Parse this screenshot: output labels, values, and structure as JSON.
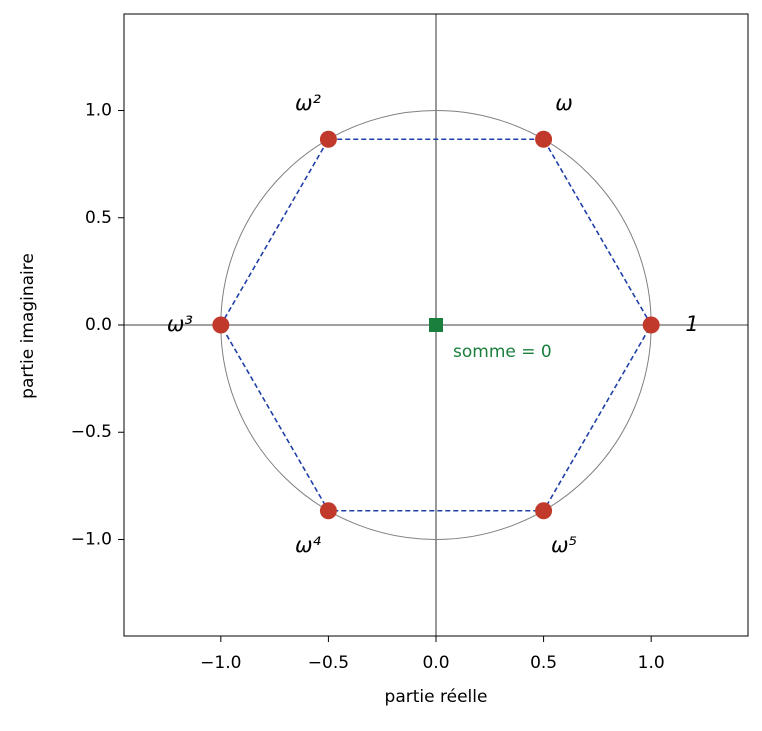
{
  "chart_data": {
    "type": "scatter",
    "xlabel": "partie réelle",
    "ylabel": "partie imaginaire",
    "xlim": [
      -1.45,
      1.45
    ],
    "ylim": [
      -1.45,
      1.45
    ],
    "xticks": [
      {
        "value": -1.0,
        "label": "−1.0"
      },
      {
        "value": -0.5,
        "label": "−0.5"
      },
      {
        "value": 0,
        "label": "0.0"
      },
      {
        "value": 0.5,
        "label": "0.5"
      },
      {
        "value": 1.0,
        "label": "1.0"
      }
    ],
    "yticks": [
      {
        "value": -1.0,
        "label": "−1.0"
      },
      {
        "value": -0.5,
        "label": "−0.5"
      },
      {
        "value": 0,
        "label": "0.0"
      },
      {
        "value": 0.5,
        "label": "0.5"
      },
      {
        "value": 1.0,
        "label": "1.0"
      }
    ],
    "x": [
      1,
      0.5,
      -0.5,
      -1,
      -0.5,
      0.5
    ],
    "y": [
      0,
      0.866,
      0.866,
      0,
      -0.866,
      -0.866
    ],
    "point_labels": [
      "1",
      "ω",
      "ω²",
      "ω³",
      "ω⁴",
      "ω⁵"
    ],
    "color": "#c0392b",
    "polygon_color": "#2040a8",
    "circle": {
      "radius": 1,
      "color": "#808080"
    },
    "zero_lines": true,
    "center": {
      "x": 0,
      "y": 0,
      "label": "somme = 0",
      "color": "#1a7f3c"
    }
  }
}
